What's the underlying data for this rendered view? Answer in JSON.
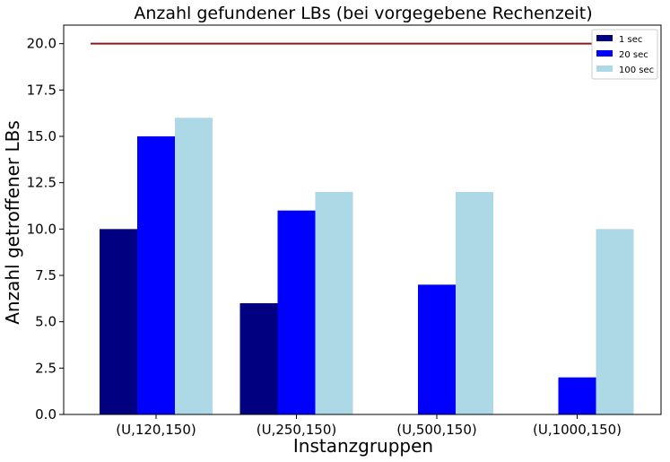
{
  "chart_data": {
    "type": "bar",
    "title": "Anzahl gefundener LBs (bei vorgegebene Rechenzeit)",
    "xlabel": "Instanzgruppen",
    "ylabel": "Anzahl getroffener LBs",
    "categories": [
      "(U,120,150)",
      "(U,250,150)",
      "(U,500,150)",
      "(U,1000,150)"
    ],
    "series": [
      {
        "name": "1 sec",
        "color": "#000080",
        "values": [
          10,
          6,
          0,
          0
        ]
      },
      {
        "name": "20 sec",
        "color": "#0000ff",
        "values": [
          15,
          11,
          7,
          2
        ]
      },
      {
        "name": "100 sec",
        "color": "#add8e6",
        "values": [
          16,
          12,
          12,
          10
        ]
      }
    ],
    "reference_line": {
      "y": 20,
      "color": "#8b1a1a"
    },
    "ylim": [
      0,
      21
    ],
    "yticks": [
      "0.0",
      "2.5",
      "5.0",
      "7.5",
      "10.0",
      "12.5",
      "15.0",
      "17.5",
      "20.0"
    ],
    "grid": false,
    "legend_position": "top-right"
  }
}
